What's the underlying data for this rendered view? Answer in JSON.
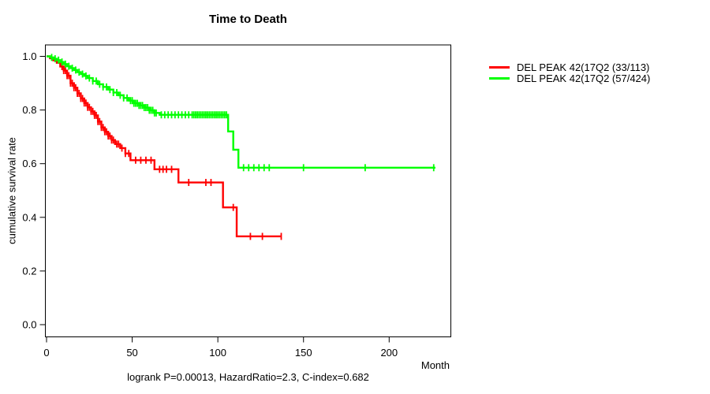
{
  "chart_data": {
    "type": "line",
    "subtype": "kaplan-meier-step-curves",
    "title": "Time to Death",
    "xlabel": "Month",
    "ylabel": "cumulative survival rate",
    "xlim": [
      0,
      236
    ],
    "ylim": [
      0.0,
      1.0
    ],
    "x_ticks": [
      0,
      50,
      100,
      150,
      200
    ],
    "y_ticks": [
      0.0,
      0.2,
      0.4,
      0.6,
      0.8,
      1.0
    ],
    "grid": false,
    "legend_position": "top-right-outside",
    "annotation": "logrank P=0.00013, HazardRatio=2.3, C-index=0.682",
    "series": [
      {
        "name": "DEL PEAK 42(17Q2 (33/113)",
        "color": "#ff0000",
        "end_month": 137,
        "steps": [
          [
            0,
            1.0
          ],
          [
            2,
            0.993
          ],
          [
            4,
            0.985
          ],
          [
            6,
            0.976
          ],
          [
            8,
            0.962
          ],
          [
            10,
            0.947
          ],
          [
            12,
            0.928
          ],
          [
            14,
            0.9
          ],
          [
            16,
            0.883
          ],
          [
            18,
            0.862
          ],
          [
            20,
            0.843
          ],
          [
            22,
            0.826
          ],
          [
            24,
            0.81
          ],
          [
            26,
            0.795
          ],
          [
            28,
            0.78
          ],
          [
            30,
            0.757
          ],
          [
            32,
            0.735
          ],
          [
            34,
            0.719
          ],
          [
            36,
            0.703
          ],
          [
            38,
            0.688
          ],
          [
            40,
            0.673
          ],
          [
            43,
            0.658
          ],
          [
            46,
            0.638
          ],
          [
            49,
            0.613
          ],
          [
            63,
            0.579
          ],
          [
            77,
            0.53
          ],
          [
            103,
            0.437
          ],
          [
            111,
            0.329
          ]
        ],
        "censor_months": [
          9,
          10,
          11,
          12,
          13,
          14,
          15,
          16,
          17,
          18,
          19,
          20,
          21,
          22,
          23,
          24,
          25,
          26,
          27,
          28,
          29,
          30,
          31,
          32,
          33,
          34,
          35,
          36,
          37,
          38,
          39,
          41,
          42,
          44,
          46,
          48,
          52,
          55,
          58,
          61,
          66,
          68,
          70,
          73,
          83,
          93,
          96,
          109,
          119,
          126,
          137
        ]
      },
      {
        "name": "DEL PEAK 42(17Q2 (57/424)",
        "color": "#00ff00",
        "end_month": 227,
        "steps": [
          [
            0,
            1.0
          ],
          [
            2,
            0.996
          ],
          [
            4,
            0.991
          ],
          [
            6,
            0.986
          ],
          [
            8,
            0.979
          ],
          [
            10,
            0.971
          ],
          [
            12,
            0.963
          ],
          [
            14,
            0.956
          ],
          [
            16,
            0.949
          ],
          [
            18,
            0.941
          ],
          [
            20,
            0.934
          ],
          [
            22,
            0.927
          ],
          [
            24,
            0.919
          ],
          [
            27,
            0.908
          ],
          [
            30,
            0.896
          ],
          [
            33,
            0.886
          ],
          [
            36,
            0.876
          ],
          [
            39,
            0.865
          ],
          [
            42,
            0.855
          ],
          [
            45,
            0.845
          ],
          [
            48,
            0.835
          ],
          [
            51,
            0.825
          ],
          [
            54,
            0.817
          ],
          [
            57,
            0.809
          ],
          [
            60,
            0.799
          ],
          [
            63,
            0.789
          ],
          [
            66,
            0.782
          ],
          [
            106,
            0.72
          ],
          [
            109,
            0.652
          ],
          [
            112,
            0.585
          ]
        ],
        "censor_months": [
          3,
          5,
          7,
          9,
          11,
          13,
          15,
          17,
          19,
          21,
          23,
          25,
          27,
          29,
          31,
          33,
          35,
          37,
          39,
          41,
          43,
          45,
          47,
          49,
          50,
          51,
          52,
          53,
          54,
          55,
          56,
          57,
          58,
          59,
          60,
          61,
          62,
          63,
          64,
          67,
          69,
          71,
          73,
          75,
          77,
          79,
          81,
          83,
          85,
          86,
          87,
          88,
          89,
          90,
          91,
          92,
          93,
          94,
          95,
          96,
          97,
          98,
          99,
          100,
          101,
          102,
          103,
          104,
          105,
          115,
          118,
          121,
          124,
          127,
          130,
          150,
          186,
          226
        ]
      }
    ],
    "axis_color": "#000000",
    "tick_label_format_y": "one-decimal"
  }
}
